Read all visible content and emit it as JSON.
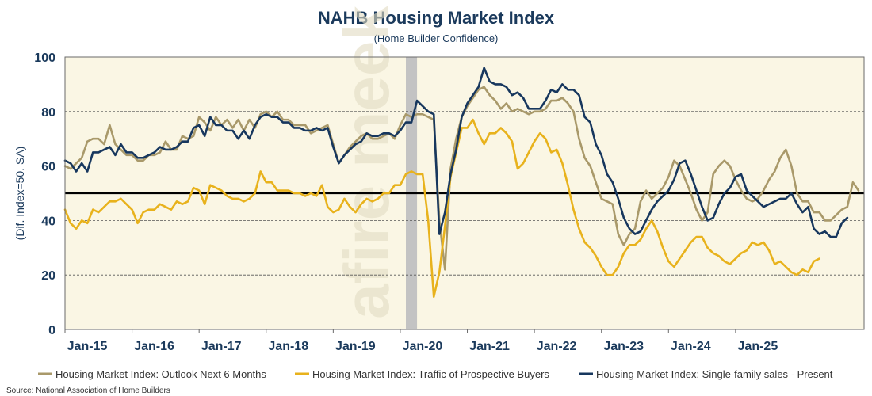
{
  "chart_data": {
    "type": "line",
    "title": "NAHB Housing Market Index",
    "subtitle": "(Home Builder Confidence)",
    "ylabel": "(Dif. Index=50, SA)",
    "xlabel": "",
    "ylim": [
      0,
      100
    ],
    "yticks": [
      0,
      20,
      40,
      60,
      80,
      100
    ],
    "grid": "horizontal dashed",
    "reference_line": 50,
    "recession_shading": {
      "start": "2020-02",
      "end": "2020-04"
    },
    "x_start": "2015-01",
    "x_ticks": [
      "Jan-15",
      "Jan-16",
      "Jan-17",
      "Jan-18",
      "Jan-19",
      "Jan-20",
      "Jan-21",
      "Jan-22",
      "Jan-23",
      "Jan-24",
      "Jan-25"
    ],
    "legend_position": "bottom",
    "series": [
      {
        "name": "Housing Market Index: Outlook Next 6 Months",
        "color": "#a9996a",
        "values": [
          60,
          59,
          61,
          63,
          69,
          70,
          70,
          68,
          75,
          68,
          66,
          64,
          64,
          62,
          62,
          64,
          64,
          65,
          69,
          66,
          66,
          71,
          70,
          71,
          78,
          76,
          73,
          78,
          75,
          77,
          74,
          77,
          73,
          77,
          74,
          79,
          80,
          78,
          80,
          77,
          77,
          75,
          75,
          75,
          72,
          73,
          74,
          75,
          68,
          61,
          64,
          67,
          69,
          71,
          72,
          70,
          70,
          71,
          72,
          70,
          75,
          79,
          78,
          79,
          79,
          78,
          77,
          40,
          22,
          59,
          70,
          78,
          82,
          85,
          88,
          89,
          86,
          84,
          81,
          83,
          80,
          81,
          80,
          79,
          80,
          80,
          81,
          84,
          84,
          85,
          83,
          80,
          70,
          63,
          60,
          54,
          48,
          47,
          46,
          35,
          31,
          35,
          37,
          47,
          51,
          48,
          50,
          52,
          56,
          62,
          60,
          55,
          50,
          44,
          40,
          43,
          57,
          60,
          62,
          60,
          55,
          51,
          48,
          47,
          48,
          51,
          55,
          58,
          63,
          66,
          60,
          50,
          47,
          47,
          43,
          43,
          40,
          40,
          42,
          44,
          45,
          54,
          51
        ]
      },
      {
        "name": "Housing Market Index: Traffic of Prospective Buyers",
        "color": "#e8b21c",
        "values": [
          44,
          39,
          37,
          40,
          39,
          44,
          43,
          45,
          47,
          47,
          48,
          46,
          44,
          39,
          43,
          44,
          44,
          46,
          45,
          44,
          47,
          46,
          47,
          52,
          51,
          46,
          53,
          52,
          51,
          49,
          48,
          48,
          47,
          48,
          50,
          58,
          54,
          54,
          51,
          51,
          51,
          50,
          50,
          49,
          50,
          49,
          53,
          45,
          43,
          44,
          48,
          45,
          43,
          46,
          48,
          47,
          48,
          50,
          50,
          53,
          53,
          57,
          58,
          57,
          57,
          40,
          12,
          21,
          38,
          56,
          65,
          74,
          74,
          77,
          72,
          68,
          72,
          72,
          74,
          72,
          69,
          59,
          61,
          65,
          69,
          72,
          70,
          65,
          66,
          61,
          53,
          44,
          37,
          32,
          30,
          27,
          23,
          20,
          20,
          23,
          28,
          31,
          31,
          33,
          37,
          40,
          36,
          30,
          25,
          23,
          26,
          29,
          32,
          34,
          34,
          30,
          28,
          27,
          25,
          24,
          26,
          28,
          29,
          32,
          31,
          32,
          29,
          24,
          25,
          23,
          21,
          20,
          22,
          21,
          25,
          26
        ]
      },
      {
        "name": "Housing Market Index: Single-family sales - Present",
        "color": "#17375e",
        "values": [
          62,
          61,
          58,
          61,
          58,
          65,
          65,
          66,
          67,
          64,
          68,
          65,
          65,
          63,
          63,
          64,
          65,
          67,
          66,
          66,
          67,
          69,
          69,
          74,
          75,
          71,
          78,
          75,
          75,
          73,
          73,
          70,
          73,
          70,
          75,
          78,
          79,
          78,
          78,
          76,
          76,
          74,
          74,
          73,
          73,
          74,
          73,
          74,
          67,
          61,
          64,
          66,
          68,
          69,
          72,
          71,
          71,
          72,
          72,
          71,
          73,
          76,
          76,
          84,
          82,
          80,
          79,
          35,
          43,
          57,
          66,
          78,
          83,
          86,
          89,
          96,
          91,
          90,
          90,
          89,
          86,
          87,
          85,
          81,
          81,
          81,
          84,
          88,
          87,
          90,
          88,
          88,
          86,
          78,
          76,
          68,
          64,
          57,
          54,
          48,
          41,
          37,
          35,
          36,
          40,
          44,
          47,
          49,
          51,
          55,
          61,
          62,
          57,
          51,
          45,
          40,
          41,
          46,
          50,
          52,
          56,
          57,
          51,
          49,
          47,
          45,
          46,
          47,
          48,
          48,
          50,
          46,
          43,
          45,
          37,
          35,
          36,
          34,
          34,
          39,
          41
        ]
      }
    ]
  },
  "source": "Source: National Association of Home Builders",
  "watermark": "afire meek"
}
